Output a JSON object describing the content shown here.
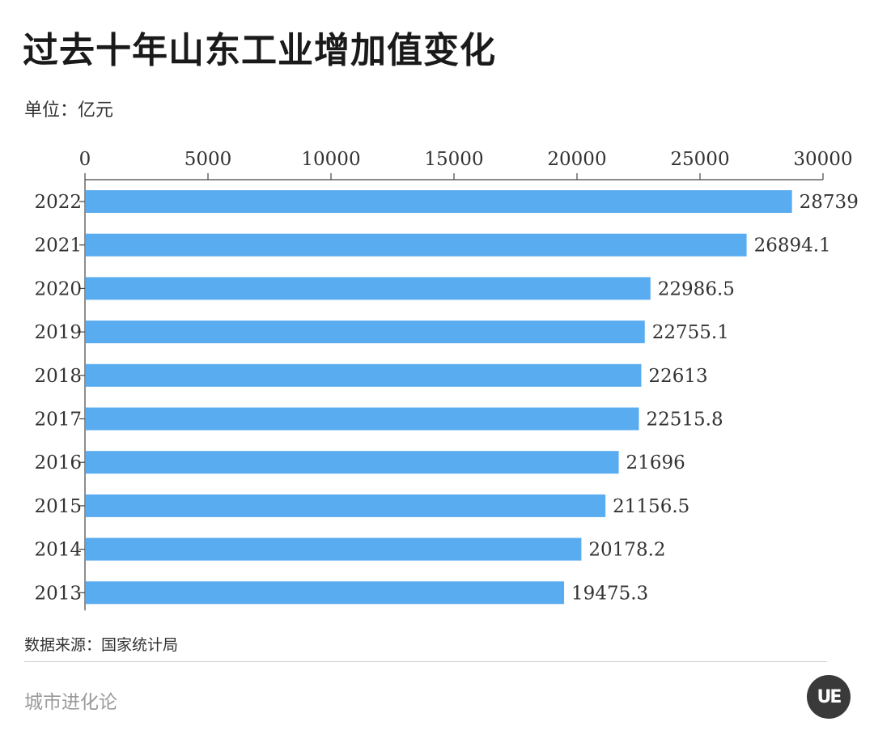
{
  "header": {
    "title": "过去十年山东工业增加值变化",
    "unit": "单位：亿元"
  },
  "footer": {
    "source": "数据来源：国家统计局",
    "brand": "城市进化论",
    "logo_text": "UE"
  },
  "colors": {
    "bar": "#5aacf0",
    "axis": "#444444"
  },
  "chart_data": {
    "type": "bar",
    "orientation": "horizontal",
    "categories": [
      "2022",
      "2021",
      "2020",
      "2019",
      "2018",
      "2017",
      "2016",
      "2015",
      "2014",
      "2013"
    ],
    "values": [
      28739,
      26894.1,
      22986.5,
      22755.1,
      22613,
      22515.8,
      21696,
      21156.5,
      20178.2,
      19475.3
    ],
    "value_labels": [
      "28739",
      "26894.1",
      "22986.5",
      "22755.1",
      "22613",
      "22515.8",
      "21696",
      "21156.5",
      "20178.2",
      "19475.3"
    ],
    "xlim": [
      0,
      30000
    ],
    "x_ticks": [
      "0",
      "5000",
      "10000",
      "15000",
      "20000",
      "25000",
      "30000"
    ],
    "x_axis_position": "top",
    "grid": false,
    "title": "过去十年山东工业增加值变化",
    "xlabel": "",
    "ylabel": ""
  }
}
